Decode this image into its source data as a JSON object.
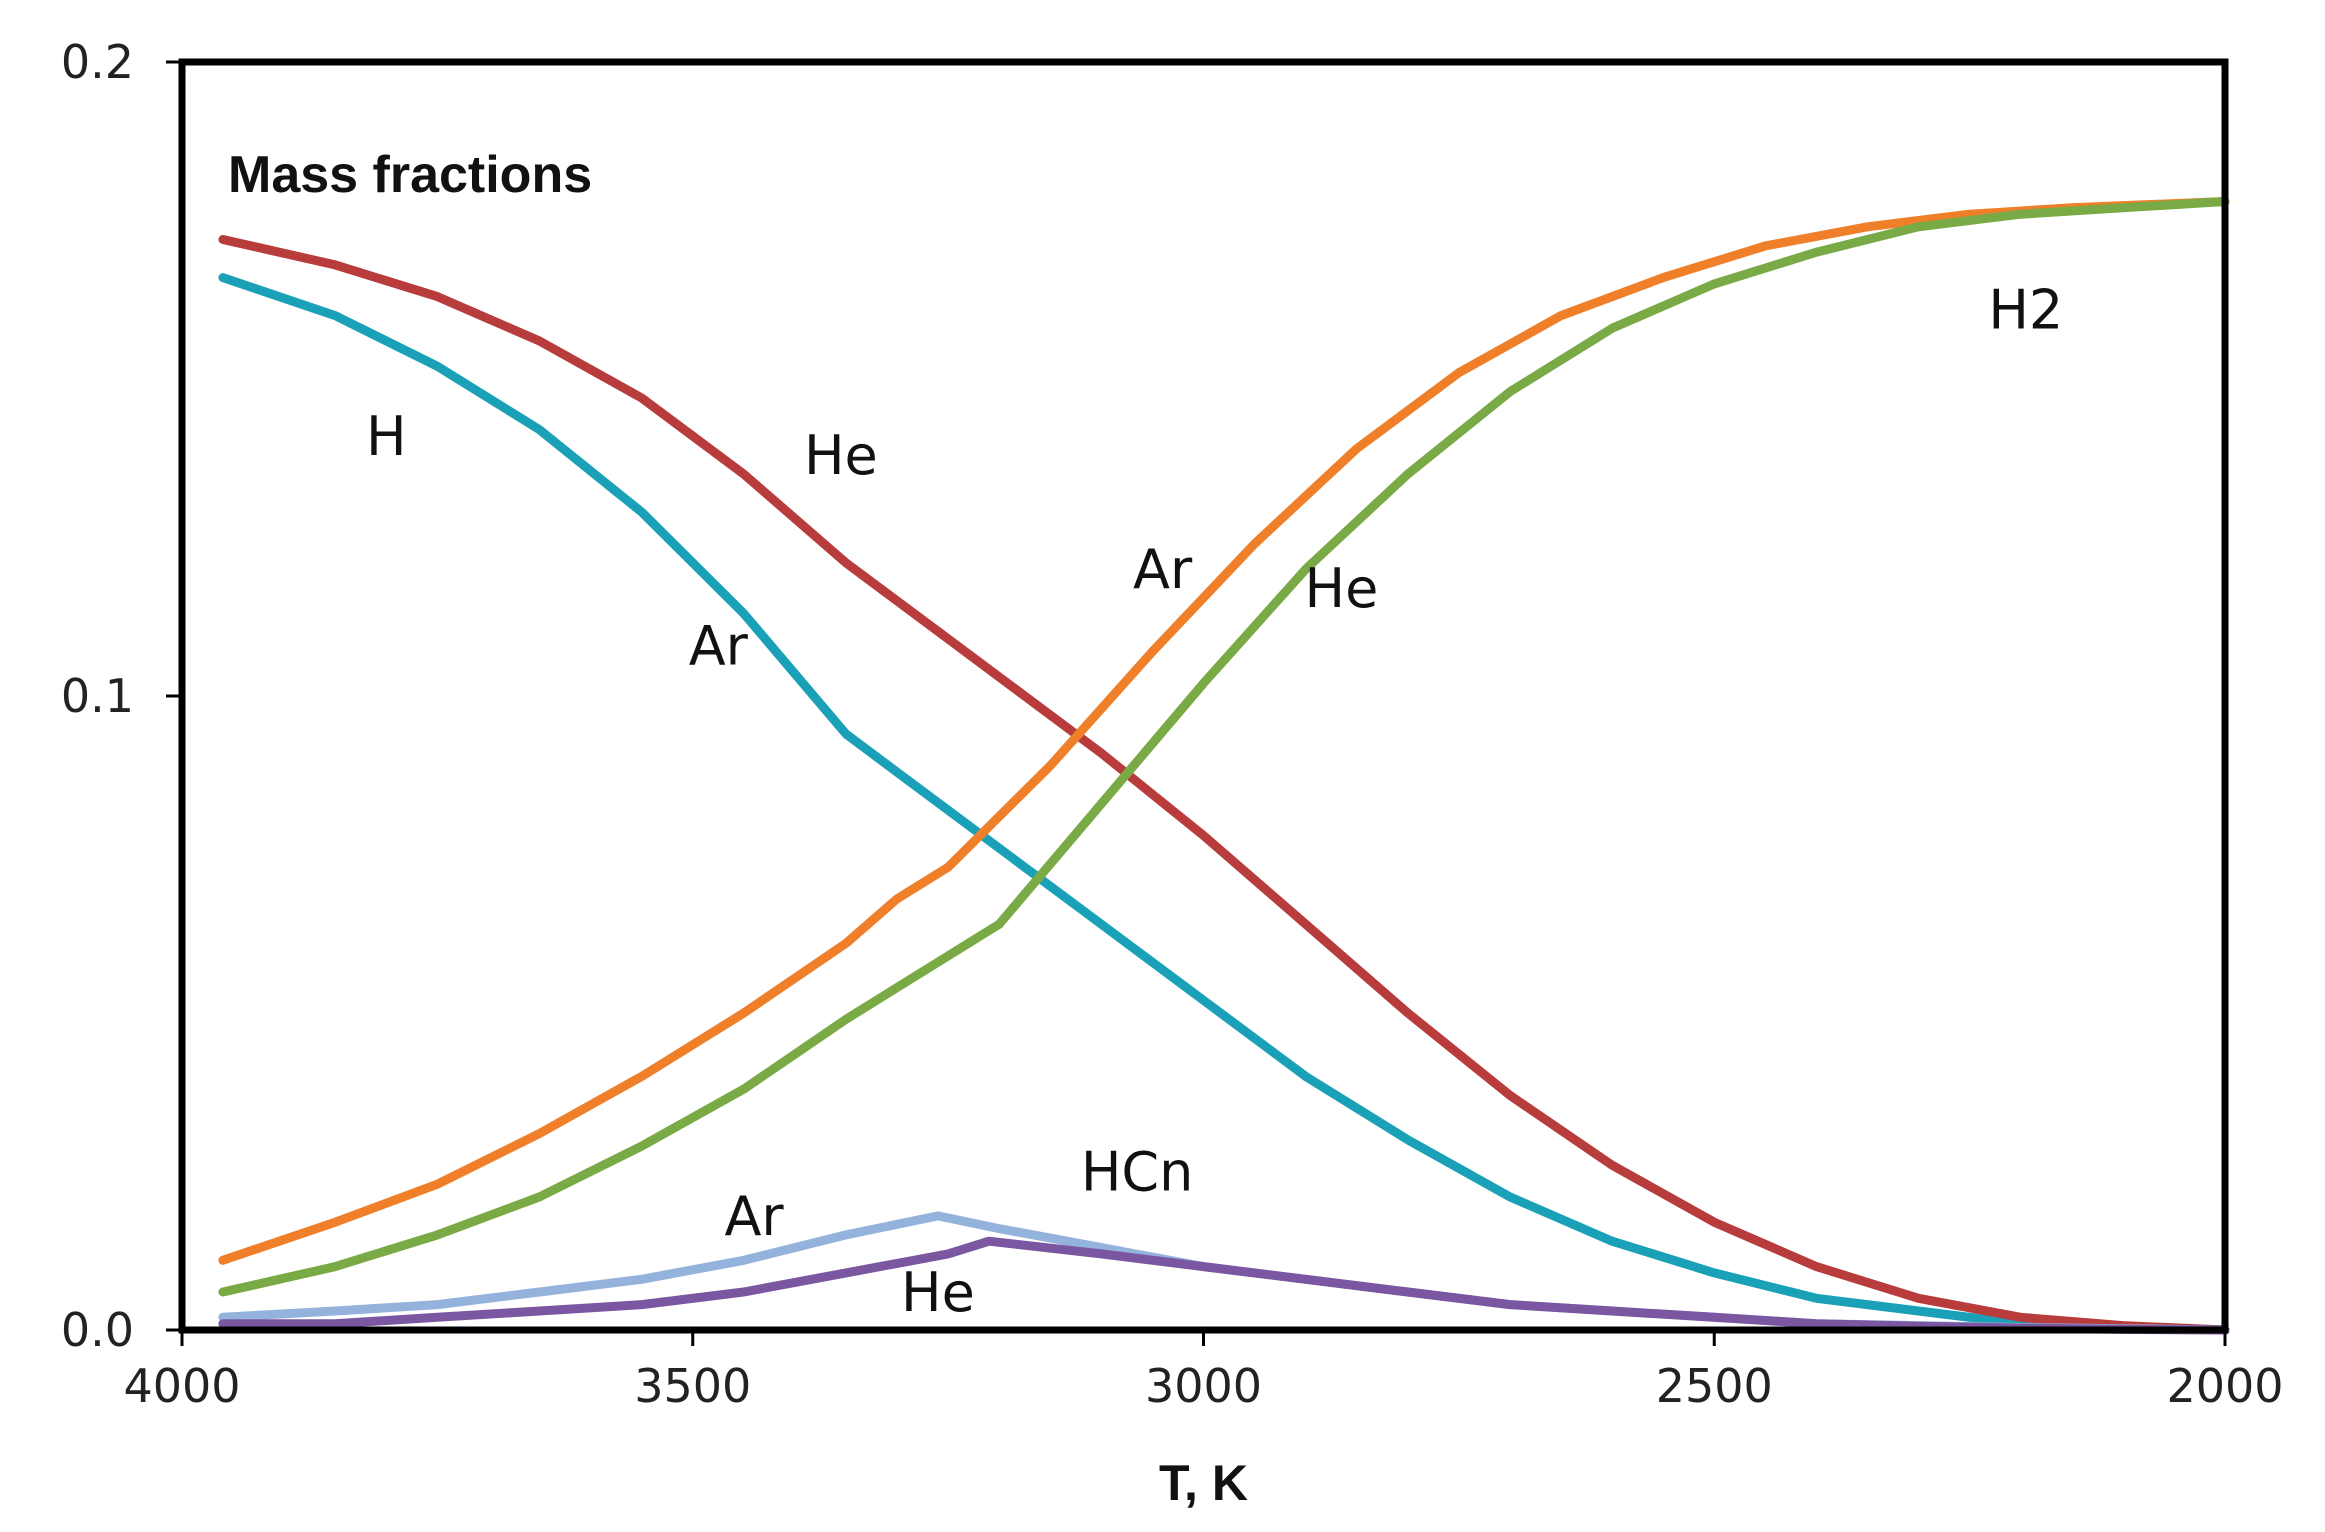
{
  "chart_data": {
    "type": "line",
    "title": "Mass fractions",
    "xlabel": "T, K",
    "ylabel": "",
    "xlim": [
      4000,
      2000
    ],
    "ylim": [
      0,
      0.2
    ],
    "x_ticks": [
      4000,
      3500,
      3000,
      2500,
      2000
    ],
    "x_tick_labels": [
      "4000",
      "3500",
      "3000",
      "2500",
      "2000"
    ],
    "y_ticks": [
      0,
      0.1,
      0.2
    ],
    "y_tick_labels": [
      "0.0",
      "0.1",
      "0.2"
    ],
    "grid": false,
    "series": [
      {
        "name": "H (Ar)",
        "color": "#1aa1b8",
        "x": [
          3960,
          3850,
          3750,
          3650,
          3550,
          3450,
          3350,
          3300,
          3200,
          3100,
          3000,
          2900,
          2800,
          2700,
          2600,
          2500,
          2400,
          2300,
          2200,
          2100,
          2000
        ],
        "y": [
          0.166,
          0.16,
          0.152,
          0.142,
          0.129,
          0.113,
          0.094,
          0.088,
          0.076,
          0.064,
          0.052,
          0.04,
          0.03,
          0.021,
          0.014,
          0.009,
          0.005,
          0.003,
          0.001,
          0.0005,
          0.0
        ]
      },
      {
        "name": "H (He)",
        "color": "#b83c3c",
        "x": [
          3960,
          3850,
          3750,
          3650,
          3550,
          3450,
          3350,
          3250,
          3200,
          3100,
          3000,
          2900,
          2800,
          2700,
          2600,
          2500,
          2400,
          2300,
          2200,
          2100,
          2000
        ],
        "y": [
          0.172,
          0.168,
          0.163,
          0.156,
          0.147,
          0.135,
          0.121,
          0.109,
          0.103,
          0.091,
          0.078,
          0.064,
          0.05,
          0.037,
          0.026,
          0.017,
          0.01,
          0.005,
          0.002,
          0.0007,
          0.0
        ]
      },
      {
        "name": "H2 (Ar)",
        "color": "#f07f2a",
        "x": [
          3960,
          3850,
          3750,
          3650,
          3550,
          3450,
          3350,
          3300,
          3250,
          3150,
          3050,
          2950,
          2850,
          2750,
          2650,
          2550,
          2450,
          2350,
          2250,
          2150,
          2000
        ],
        "y": [
          0.011,
          0.017,
          0.023,
          0.031,
          0.04,
          0.05,
          0.061,
          0.068,
          0.073,
          0.089,
          0.107,
          0.124,
          0.139,
          0.151,
          0.16,
          0.166,
          0.171,
          0.174,
          0.176,
          0.177,
          0.178
        ]
      },
      {
        "name": "H2 (He)",
        "color": "#7aaa45",
        "x": [
          3960,
          3850,
          3750,
          3650,
          3550,
          3450,
          3350,
          3300,
          3200,
          3100,
          3000,
          2900,
          2800,
          2700,
          2600,
          2500,
          2400,
          2300,
          2200,
          2100,
          2000
        ],
        "y": [
          0.006,
          0.01,
          0.015,
          0.021,
          0.029,
          0.038,
          0.049,
          0.054,
          0.064,
          0.083,
          0.102,
          0.12,
          0.135,
          0.148,
          0.158,
          0.165,
          0.17,
          0.174,
          0.176,
          0.177,
          0.178
        ]
      },
      {
        "name": "HCn (Ar)",
        "color": "#93b3dc",
        "x": [
          3960,
          3850,
          3750,
          3650,
          3550,
          3450,
          3350,
          3260,
          3200,
          3100,
          3000,
          2900,
          2800,
          2700,
          2600,
          2500,
          2400,
          2300,
          2200,
          2100,
          2000
        ],
        "y": [
          0.002,
          0.003,
          0.004,
          0.006,
          0.008,
          0.011,
          0.015,
          0.018,
          0.016,
          0.013,
          0.01,
          0.008,
          0.006,
          0.004,
          0.003,
          0.002,
          0.001,
          0.0007,
          0.0004,
          0.0002,
          0.0
        ]
      },
      {
        "name": "HCn (He)",
        "color": "#7a57a0",
        "x": [
          3960,
          3850,
          3750,
          3650,
          3550,
          3450,
          3350,
          3250,
          3210,
          3100,
          3000,
          2900,
          2800,
          2700,
          2600,
          2500,
          2400,
          2300,
          2200,
          2100,
          2000
        ],
        "y": [
          0.001,
          0.001,
          0.002,
          0.003,
          0.004,
          0.006,
          0.009,
          0.012,
          0.014,
          0.012,
          0.01,
          0.008,
          0.006,
          0.004,
          0.003,
          0.002,
          0.001,
          0.0006,
          0.0003,
          0.0001,
          0.0
        ]
      }
    ],
    "annotations": [
      {
        "text": "H",
        "x": 3800,
        "y": 0.138
      },
      {
        "text": "He",
        "x": 3355,
        "y": 0.135
      },
      {
        "text": "Ar",
        "x": 3475,
        "y": 0.105
      },
      {
        "text": "Ar",
        "x": 3040,
        "y": 0.117
      },
      {
        "text": "He",
        "x": 2865,
        "y": 0.114
      },
      {
        "text": "H2",
        "x": 2195,
        "y": 0.158
      },
      {
        "text": "HCn",
        "x": 3065,
        "y": 0.022
      },
      {
        "text": "Ar",
        "x": 3440,
        "y": 0.015
      },
      {
        "text": "He",
        "x": 3260,
        "y": 0.003
      }
    ]
  }
}
